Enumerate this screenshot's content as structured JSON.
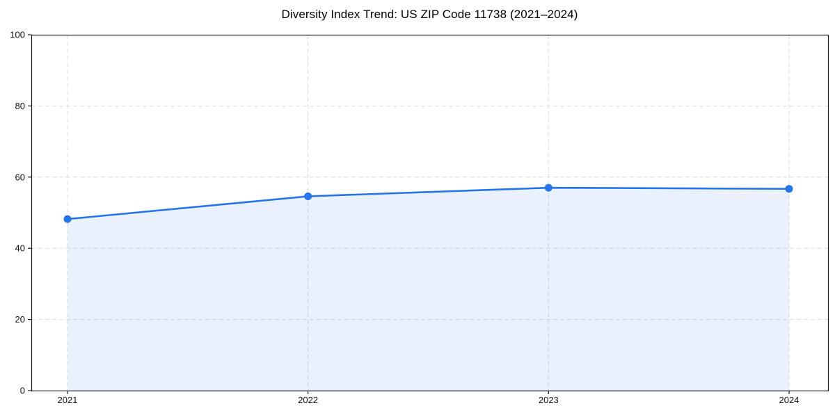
{
  "title": "Diversity Index Trend: US ZIP Code 11738 (2021–2024)",
  "chart_data": {
    "type": "area",
    "title": "Diversity Index Trend: US ZIP Code 11738 (2021–2024)",
    "x": [
      "2021",
      "2022",
      "2023",
      "2024"
    ],
    "series": [
      {
        "name": "Diversity Index",
        "values": [
          48.2,
          54.6,
          57.0,
          56.7
        ]
      }
    ],
    "xlabel": "",
    "ylabel": "",
    "ylim": [
      0,
      100
    ],
    "yticks": [
      0,
      20,
      40,
      60,
      80,
      100
    ],
    "grid": true,
    "grid_style": "dashed",
    "legend": "none",
    "line_color": "#2575e8",
    "fill_color": "rgba(37,117,232,0.10)",
    "grid_color": "#dcdcdc",
    "axis_color": "#1a1a1a",
    "text_color": "#111111"
  }
}
